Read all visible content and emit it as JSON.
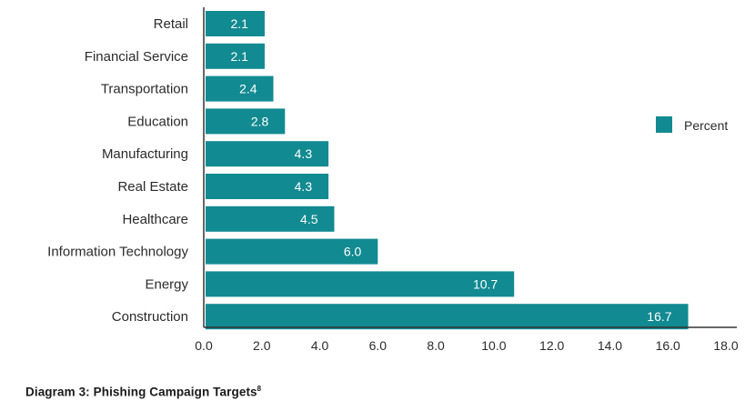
{
  "chart_data": {
    "type": "bar",
    "orientation": "horizontal",
    "categories": [
      "Retail",
      "Financial Service",
      "Transportation",
      "Education",
      "Manufacturing",
      "Real Estate",
      "Healthcare",
      "Information Technology",
      "Energy",
      "Construction"
    ],
    "series": [
      {
        "name": "Percent",
        "values": [
          2.1,
          2.1,
          2.4,
          2.8,
          4.3,
          4.3,
          4.5,
          6.0,
          10.7,
          16.7
        ],
        "labels": [
          "2.1",
          "2.1",
          "2.4",
          "2.8",
          "4.3",
          "4.3",
          "4.5",
          "6.0",
          "10.7",
          "16.7"
        ]
      }
    ],
    "xlim": [
      0,
      18
    ],
    "x_ticks": [
      "0.0",
      "2.0",
      "4.0",
      "6.0",
      "8.0",
      "10.0",
      "12.0",
      "14.0",
      "16.0",
      "18.0"
    ],
    "grid": false,
    "legend_position": "right"
  },
  "caption": {
    "text": "Diagram 3: Phishing Campaign Targets",
    "footnote": "8"
  },
  "colors": {
    "bar": "#128a91",
    "axis": "#333333"
  }
}
